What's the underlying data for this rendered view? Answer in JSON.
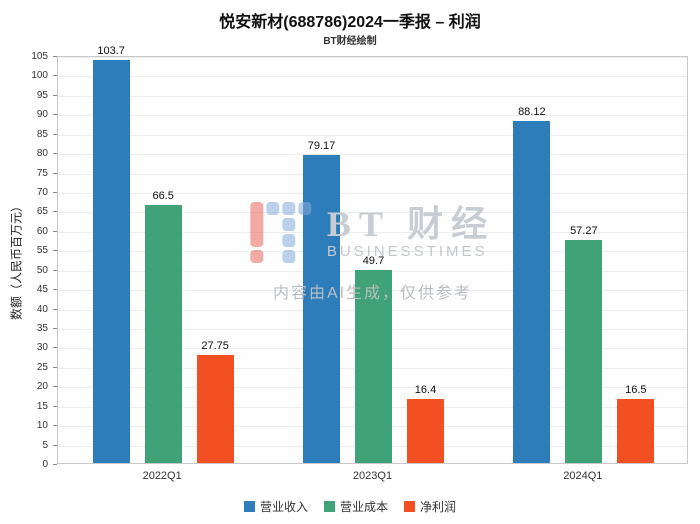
{
  "header": {
    "title": "悦安新材(688786)2024一季报 – 利润",
    "subtitle": "BT财经绘制"
  },
  "chart_data": {
    "type": "bar",
    "categories": [
      "2022Q1",
      "2023Q1",
      "2024Q1"
    ],
    "series": [
      {
        "name": "营业收入",
        "color": "#2d7dbb",
        "values": [
          103.7,
          79.17,
          88.12
        ]
      },
      {
        "name": "营业成本",
        "color": "#40a377",
        "values": [
          66.5,
          49.7,
          57.27
        ]
      },
      {
        "name": "净利润",
        "color": "#f25022",
        "values": [
          27.75,
          16.4,
          16.5
        ]
      }
    ],
    "xlabel": "",
    "ylabel": "数额（人民币百万元）",
    "ylim": [
      0,
      105
    ],
    "ytick_step": 5,
    "grid": true,
    "legend_position": "bottom"
  },
  "watermark": {
    "brand": "BT 财经",
    "brand_sub": "BUSINESSTIMES",
    "note": "内容由AI生成，仅供参考"
  }
}
